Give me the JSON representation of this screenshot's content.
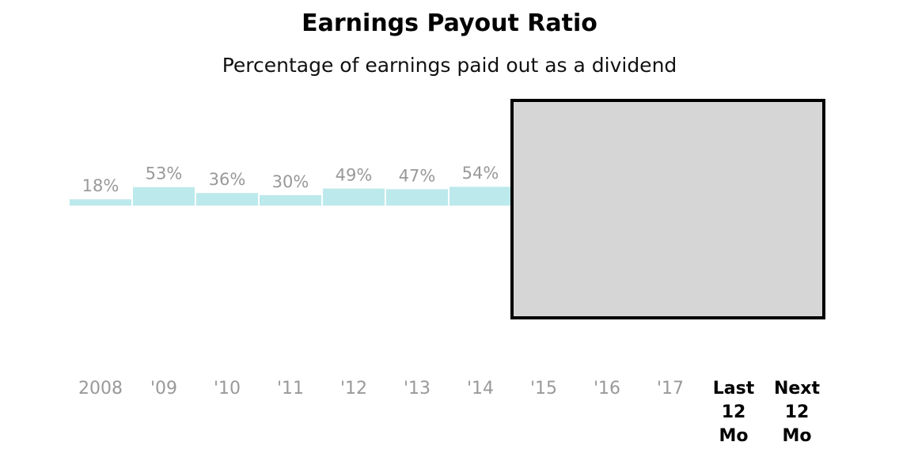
{
  "title": "Earnings Payout Ratio",
  "subtitle": "Percentage of earnings paid out as a dividend",
  "chart_data": {
    "type": "bar",
    "title": "Earnings Payout Ratio",
    "subtitle": "Percentage of earnings paid out as a dividend",
    "categories": [
      "2008",
      "'09",
      "'10",
      "'11",
      "'12",
      "'13",
      "'14",
      "'15",
      "'16",
      "'17",
      "Last 12 Mo",
      "Next 12 Mo"
    ],
    "values": [
      18,
      53,
      36,
      30,
      49,
      47,
      54,
      null,
      null,
      null,
      null,
      null
    ],
    "data_labels": [
      "18%",
      "53%",
      "36%",
      "30%",
      "49%",
      "47%",
      "54%",
      "",
      "",
      "",
      "",
      ""
    ],
    "value_unit": "%",
    "grid": false,
    "legend": "none",
    "bar_color": "#bce9ec",
    "value_label_color": "#999999",
    "tick_color": "#999999",
    "highlight_tick_color": "#000000",
    "highlighted_categories": [
      "Last 12 Mo",
      "Next 12 Mo"
    ],
    "placeholder_box": {
      "covers_categories": [
        "'15",
        "'16",
        "'17",
        "Last 12 Mo",
        "Next 12 Mo"
      ],
      "fill": "#d6d6d6",
      "border": "#000000"
    }
  }
}
